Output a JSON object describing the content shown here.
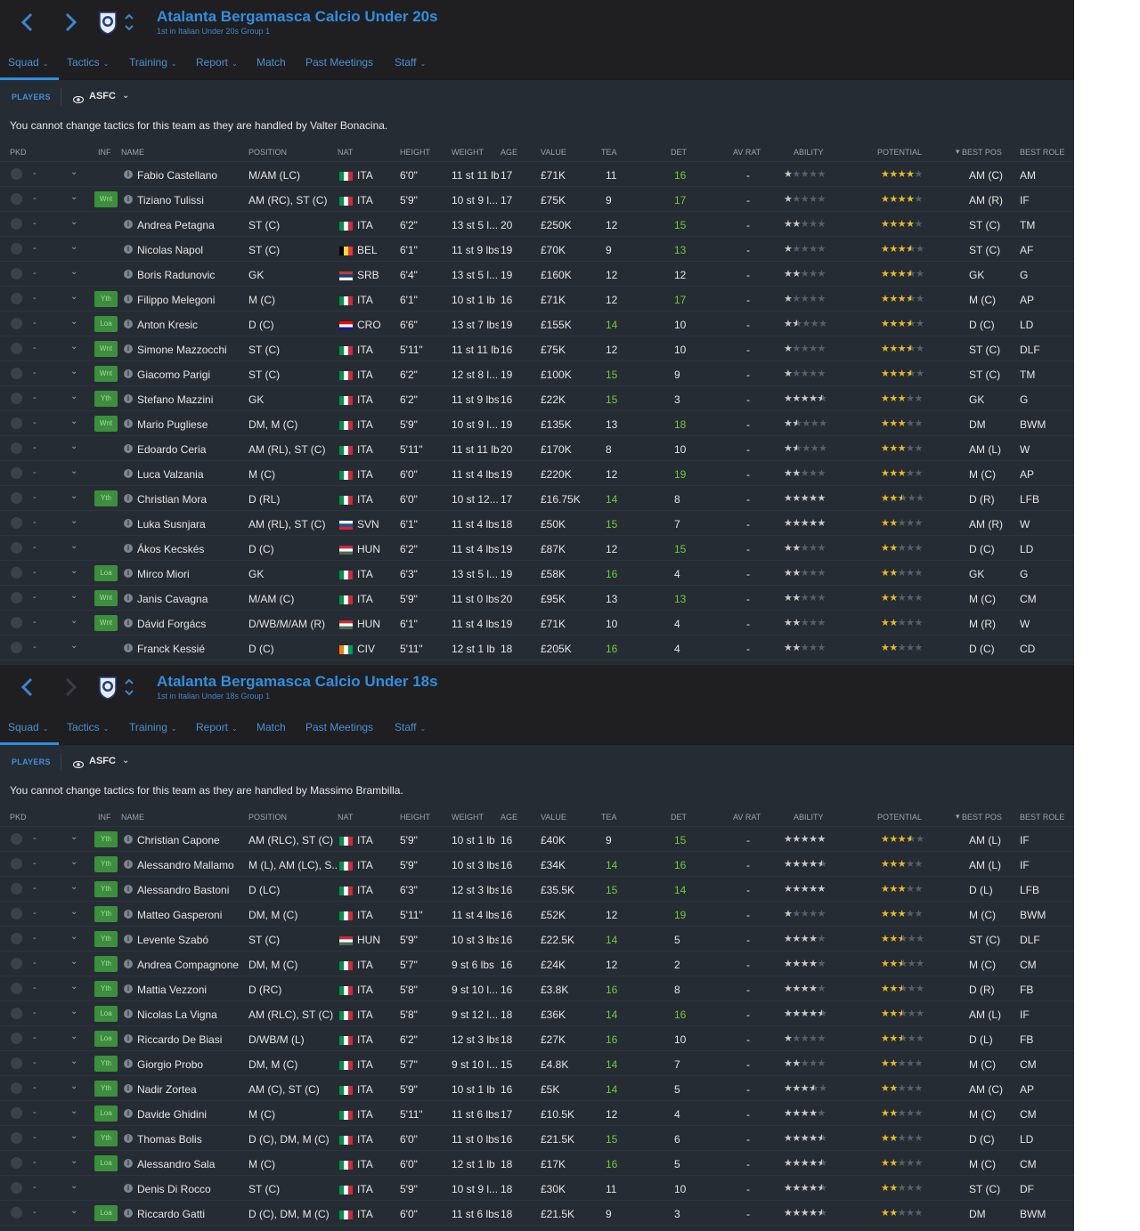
{
  "panels": [
    {
      "title": "Atalanta Bergamasca Calcio Under 20s",
      "subtitle": "1st in Italian Under 20s Group 1",
      "fwd_enabled": true,
      "notice": "You cannot change tactics for this team as they are handled by Valter Bonacina.",
      "rows": [
        {
          "inf": "",
          "name": "Fabio Castellano",
          "pos": "M/AM (LC)",
          "flag": "ITA",
          "nat": "ITA",
          "height": "6'0\"",
          "weight": "11 st 11 lbs",
          "age": "17",
          "value": "£71K",
          "tea": "11",
          "det": "16",
          "avrat": "-",
          "abl": 1,
          "pot": 4,
          "best_pos": "AM (C)",
          "best_role": "AM"
        },
        {
          "inf": "Wnt",
          "name": "Tiziano Tulissi",
          "pos": "AM (RC), ST (C)",
          "flag": "ITA",
          "nat": "ITA",
          "height": "5'9\"",
          "weight": "10 st 9 l...",
          "age": "17",
          "value": "£75K",
          "tea": "9",
          "det": "17",
          "avrat": "-",
          "abl": 1,
          "pot": 4,
          "best_pos": "AM (R)",
          "best_role": "IF"
        },
        {
          "inf": "",
          "name": "Andrea Petagna",
          "pos": "ST (C)",
          "flag": "ITA",
          "nat": "ITA",
          "height": "6'2\"",
          "weight": "13 st 5 l...",
          "age": "20",
          "value": "£250K",
          "tea": "12",
          "det": "15",
          "avrat": "-",
          "abl": 2,
          "pot": 4,
          "best_pos": "ST (C)",
          "best_role": "TM"
        },
        {
          "inf": "",
          "name": "Nicolas Napol",
          "pos": "ST (C)",
          "flag": "BEL",
          "nat": "BEL",
          "height": "6'1\"",
          "weight": "11 st 9 lbs",
          "age": "19",
          "value": "£70K",
          "tea": "9",
          "det": "13",
          "avrat": "-",
          "abl": 1,
          "pot": 3.5,
          "best_pos": "ST (C)",
          "best_role": "AF"
        },
        {
          "inf": "",
          "name": "Boris Radunovic",
          "pos": "GK",
          "flag": "SRB",
          "nat": "SRB",
          "height": "6'4\"",
          "weight": "13 st 5 l...",
          "age": "19",
          "value": "£160K",
          "tea": "12",
          "det": "12",
          "avrat": "-",
          "abl": 2,
          "pot": 3.5,
          "best_pos": "GK",
          "best_role": "G"
        },
        {
          "inf": "Yth",
          "name": "Filippo Melegoni",
          "pos": "M (C)",
          "flag": "ITA",
          "nat": "ITA",
          "height": "6'1\"",
          "weight": "10 st 1 lb",
          "age": "16",
          "value": "£71K",
          "tea": "12",
          "det": "17",
          "avrat": "-",
          "abl": 1,
          "pot": 3.5,
          "best_pos": "M (C)",
          "best_role": "AP"
        },
        {
          "inf": "Loa",
          "name": "Anton Kresic",
          "pos": "D (C)",
          "flag": "CRO",
          "nat": "CRO",
          "height": "6'6\"",
          "weight": "13 st 7 lbs",
          "age": "19",
          "value": "£155K",
          "tea": "14",
          "det": "10",
          "avrat": "-",
          "abl": 1.5,
          "pot": 3.5,
          "best_pos": "D (C)",
          "best_role": "LD"
        },
        {
          "inf": "Wnt",
          "name": "Simone Mazzocchi",
          "pos": "ST (C)",
          "flag": "ITA",
          "nat": "ITA",
          "height": "5'11\"",
          "weight": "11 st 11 lbs",
          "age": "16",
          "value": "£75K",
          "tea": "12",
          "det": "10",
          "avrat": "-",
          "abl": 1,
          "pot": 3.5,
          "best_pos": "ST (C)",
          "best_role": "DLF"
        },
        {
          "inf": "Wnt",
          "name": "Giacomo Parigi",
          "pos": "ST (C)",
          "flag": "ITA",
          "nat": "ITA",
          "height": "6'2\"",
          "weight": "12 st 8 l...",
          "age": "19",
          "value": "£100K",
          "tea": "15",
          "det": "9",
          "avrat": "-",
          "abl": 1,
          "pot": 3.5,
          "best_pos": "ST (C)",
          "best_role": "TM"
        },
        {
          "inf": "Yth",
          "name": "Stefano Mazzini",
          "pos": "GK",
          "flag": "ITA",
          "nat": "ITA",
          "height": "6'2\"",
          "weight": "11 st 9 lbs",
          "age": "16",
          "value": "£22K",
          "tea": "15",
          "det": "3",
          "avrat": "-",
          "abl": 4.5,
          "pot": 3,
          "best_pos": "GK",
          "best_role": "G"
        },
        {
          "inf": "Wnt",
          "name": "Mario Pugliese",
          "pos": "DM, M (C)",
          "flag": "ITA",
          "nat": "ITA",
          "height": "5'9\"",
          "weight": "10 st 9 l...",
          "age": "19",
          "value": "£135K",
          "tea": "13",
          "det": "18",
          "avrat": "-",
          "abl": 1.5,
          "pot": 3,
          "best_pos": "DM",
          "best_role": "BWM"
        },
        {
          "inf": "",
          "name": "Edoardo Ceria",
          "pos": "AM (RL), ST (C)",
          "flag": "ITA",
          "nat": "ITA",
          "height": "5'11\"",
          "weight": "11 st 11 lbs",
          "age": "20",
          "value": "£170K",
          "tea": "8",
          "det": "10",
          "avrat": "-",
          "abl": 1.5,
          "pot": 3,
          "best_pos": "AM (L)",
          "best_role": "W"
        },
        {
          "inf": "",
          "name": "Luca Valzania",
          "pos": "M (C)",
          "flag": "ITA",
          "nat": "ITA",
          "height": "6'0\"",
          "weight": "11 st 4 lbs",
          "age": "19",
          "value": "£220K",
          "tea": "12",
          "det": "19",
          "avrat": "-",
          "abl": 2,
          "pot": 3,
          "best_pos": "M (C)",
          "best_role": "AP"
        },
        {
          "inf": "Yth",
          "name": "Christian Mora",
          "pos": "D (RL)",
          "flag": "ITA",
          "nat": "ITA",
          "height": "6'0\"",
          "weight": "10 st 12...",
          "age": "17",
          "value": "£16.75K",
          "tea": "14",
          "det": "8",
          "avrat": "-",
          "abl": 5,
          "pot": 2.5,
          "best_pos": "D (R)",
          "best_role": "LFB"
        },
        {
          "inf": "",
          "name": "Luka Susnjara",
          "pos": "AM (RL), ST (C)",
          "flag": "SVN",
          "nat": "SVN",
          "height": "6'1\"",
          "weight": "11 st 4 lbs",
          "age": "18",
          "value": "£50K",
          "tea": "15",
          "det": "7",
          "avrat": "-",
          "abl": 5,
          "pot": 2,
          "best_pos": "AM (R)",
          "best_role": "W"
        },
        {
          "inf": "",
          "name": "Ákos Kecskés",
          "pos": "D (C)",
          "flag": "HUN",
          "nat": "HUN",
          "height": "6'2\"",
          "weight": "11 st 4 lbs",
          "age": "19",
          "value": "£87K",
          "tea": "12",
          "det": "15",
          "avrat": "-",
          "abl": 2,
          "pot": 2,
          "best_pos": "D (C)",
          "best_role": "LD"
        },
        {
          "inf": "Loa",
          "name": "Mirco Miori",
          "pos": "GK",
          "flag": "ITA",
          "nat": "ITA",
          "height": "6'3\"",
          "weight": "13 st 5 l...",
          "age": "19",
          "value": "£58K",
          "tea": "16",
          "det": "4",
          "avrat": "-",
          "abl": 2,
          "pot": 2,
          "best_pos": "GK",
          "best_role": "G"
        },
        {
          "inf": "Wnt",
          "name": "Janis Cavagna",
          "pos": "M/AM (C)",
          "flag": "ITA",
          "nat": "ITA",
          "height": "5'9\"",
          "weight": "11 st 0 lbs",
          "age": "20",
          "value": "£95K",
          "tea": "13",
          "det": "13",
          "avrat": "-",
          "abl": 2,
          "pot": 2,
          "best_pos": "M (C)",
          "best_role": "CM"
        },
        {
          "inf": "Wnt",
          "name": "Dávid Forgács",
          "pos": "D/WB/M/AM (R)",
          "flag": "HUN",
          "nat": "HUN",
          "height": "6'1\"",
          "weight": "11 st 4 lbs",
          "age": "19",
          "value": "£71K",
          "tea": "10",
          "det": "4",
          "avrat": "-",
          "abl": 2,
          "pot": 2,
          "best_pos": "M (R)",
          "best_role": "W"
        },
        {
          "inf": "",
          "name": "Franck Kessié",
          "pos": "D (C)",
          "flag": "CIV",
          "nat": "CIV",
          "height": "5'11\"",
          "weight": "12 st 1 lb",
          "age": "18",
          "value": "£205K",
          "tea": "16",
          "det": "4",
          "avrat": "-",
          "abl": 2,
          "pot": 2,
          "best_pos": "D (C)",
          "best_role": "CD"
        }
      ]
    },
    {
      "title": "Atalanta Bergamasca Calcio Under 18s",
      "subtitle": "1st in Italian Under 18s Group 1",
      "fwd_enabled": false,
      "notice": "You cannot change tactics for this team as they are handled by Massimo Brambilla.",
      "rows": [
        {
          "inf": "Yth",
          "name": "Christian Capone",
          "pos": "AM (RLC), ST (C)",
          "flag": "ITA",
          "nat": "ITA",
          "height": "5'9\"",
          "weight": "10 st 1 lb",
          "age": "16",
          "value": "£40K",
          "tea": "9",
          "det": "15",
          "avrat": "-",
          "abl": 5,
          "pot": 3.5,
          "best_pos": "AM (L)",
          "best_role": "IF"
        },
        {
          "inf": "Yth",
          "name": "Alessandro Mallamo",
          "pos": "M (L), AM (LC), S...",
          "flag": "ITA",
          "nat": "ITA",
          "height": "5'9\"",
          "weight": "10 st 3 lbs",
          "age": "16",
          "value": "£34K",
          "tea": "14",
          "det": "16",
          "avrat": "-",
          "abl": 4.5,
          "pot": 3,
          "best_pos": "AM (L)",
          "best_role": "IF"
        },
        {
          "inf": "Yth",
          "name": "Alessandro Bastoni",
          "pos": "D (LC)",
          "flag": "ITA",
          "nat": "ITA",
          "height": "6'3\"",
          "weight": "12 st 3 lbs",
          "age": "16",
          "value": "£35.5K",
          "tea": "15",
          "det": "14",
          "avrat": "-",
          "abl": 5,
          "pot": 3,
          "best_pos": "D (L)",
          "best_role": "LFB"
        },
        {
          "inf": "Yth",
          "name": "Matteo Gasperoni",
          "pos": "DM, M (C)",
          "flag": "ITA",
          "nat": "ITA",
          "height": "5'11\"",
          "weight": "11 st 4 lbs",
          "age": "16",
          "value": "£52K",
          "tea": "12",
          "det": "19",
          "avrat": "-",
          "abl": 1,
          "pot": 3,
          "best_pos": "M (C)",
          "best_role": "BWM"
        },
        {
          "inf": "Yth",
          "name": "Levente Szabó",
          "pos": "ST (C)",
          "flag": "HUN",
          "nat": "HUN",
          "height": "5'9\"",
          "weight": "10 st 3 lbs",
          "age": "16",
          "value": "£22.5K",
          "tea": "14",
          "det": "5",
          "avrat": "-",
          "abl": 4,
          "pot": 2.5,
          "best_pos": "ST (C)",
          "best_role": "DLF"
        },
        {
          "inf": "Yth",
          "name": "Andrea Compagnone",
          "pos": "DM, M (C)",
          "flag": "ITA",
          "nat": "ITA",
          "height": "5'7\"",
          "weight": "9 st 6 lbs",
          "age": "16",
          "value": "£24K",
          "tea": "12",
          "det": "2",
          "avrat": "-",
          "abl": 4,
          "pot": 2.5,
          "best_pos": "M (C)",
          "best_role": "CM"
        },
        {
          "inf": "Yth",
          "name": "Mattia Vezzoni",
          "pos": "D (RC)",
          "flag": "ITA",
          "nat": "ITA",
          "height": "5'8\"",
          "weight": "9 st 10 l...",
          "age": "16",
          "value": "£3.8K",
          "tea": "16",
          "det": "8",
          "avrat": "-",
          "abl": 4,
          "pot": 2.5,
          "best_pos": "D (R)",
          "best_role": "FB"
        },
        {
          "inf": "Loa",
          "name": "Nicolas La Vigna",
          "pos": "AM (RLC), ST (C)",
          "flag": "ITA",
          "nat": "ITA",
          "height": "5'8\"",
          "weight": "9 st 12 l...",
          "age": "18",
          "value": "£36K",
          "tea": "14",
          "det": "16",
          "avrat": "-",
          "abl": 4.5,
          "pot": 2.5,
          "best_pos": "AM (L)",
          "best_role": "IF"
        },
        {
          "inf": "Loa",
          "name": "Riccardo De Biasi",
          "pos": "D/WB/M (L)",
          "flag": "ITA",
          "nat": "ITA",
          "height": "6'2\"",
          "weight": "12 st 3 lbs",
          "age": "18",
          "value": "£27K",
          "tea": "16",
          "det": "10",
          "avrat": "-",
          "abl": 1,
          "pot": 2.5,
          "best_pos": "D (L)",
          "best_role": "FB"
        },
        {
          "inf": "Yth",
          "name": "Giorgio Probo",
          "pos": "DM, M (C)",
          "flag": "ITA",
          "nat": "ITA",
          "height": "5'7\"",
          "weight": "9 st 10 l...",
          "age": "15",
          "value": "£4.8K",
          "tea": "14",
          "det": "7",
          "avrat": "-",
          "abl": 2,
          "pot": 2,
          "best_pos": "M (C)",
          "best_role": "CM"
        },
        {
          "inf": "Yth",
          "name": "Nadir Zortea",
          "pos": "AM (C), ST (C)",
          "flag": "ITA",
          "nat": "ITA",
          "height": "5'9\"",
          "weight": "10 st 1 lb",
          "age": "16",
          "value": "£5K",
          "tea": "14",
          "det": "5",
          "avrat": "-",
          "abl": 3.5,
          "pot": 2,
          "best_pos": "AM (C)",
          "best_role": "AP"
        },
        {
          "inf": "Loa",
          "name": "Davide Ghidini",
          "pos": "M (C)",
          "flag": "ITA",
          "nat": "ITA",
          "height": "5'11\"",
          "weight": "11 st 6 lbs",
          "age": "17",
          "value": "£10.5K",
          "tea": "12",
          "det": "4",
          "avrat": "-",
          "abl": 4,
          "pot": 2,
          "best_pos": "M (C)",
          "best_role": "CM"
        },
        {
          "inf": "Yth",
          "name": "Thomas Bolis",
          "pos": "D (C), DM, M (C)",
          "flag": "ITA",
          "nat": "ITA",
          "height": "6'0\"",
          "weight": "11 st 0 lbs",
          "age": "16",
          "value": "£21.5K",
          "tea": "15",
          "det": "6",
          "avrat": "-",
          "abl": 4.5,
          "pot": 2,
          "best_pos": "D (C)",
          "best_role": "LD"
        },
        {
          "inf": "Loa",
          "name": "Alessandro Sala",
          "pos": "M (C)",
          "flag": "ITA",
          "nat": "ITA",
          "height": "6'0\"",
          "weight": "12 st 1 lb",
          "age": "18",
          "value": "£17K",
          "tea": "16",
          "det": "5",
          "avrat": "-",
          "abl": 4.5,
          "pot": 2,
          "best_pos": "M (C)",
          "best_role": "CM"
        },
        {
          "inf": "",
          "name": "Denis Di Rocco",
          "pos": "ST (C)",
          "flag": "ITA",
          "nat": "ITA",
          "height": "5'9\"",
          "weight": "10 st 9 l...",
          "age": "18",
          "value": "£30K",
          "tea": "11",
          "det": "10",
          "avrat": "-",
          "abl": 4.5,
          "pot": 2,
          "best_pos": "ST (C)",
          "best_role": "DF"
        },
        {
          "inf": "Loa",
          "name": "Riccardo Gatti",
          "pos": "D (C), DM, M (C)",
          "flag": "ITA",
          "nat": "ITA",
          "height": "6'0\"",
          "weight": "11 st 6 lbs",
          "age": "18",
          "value": "£21.5K",
          "tea": "9",
          "det": "3",
          "avrat": "-",
          "abl": 4.5,
          "pot": 2,
          "best_pos": "DM",
          "best_role": "BWM"
        }
      ]
    }
  ],
  "menu": [
    "Squad",
    "Tactics",
    "Training",
    "Report",
    "Match",
    "Past Meetings",
    "Staff"
  ],
  "subbar": {
    "players": "PLAYERS",
    "view": "ASFC"
  },
  "columns": {
    "pkd": "PKD",
    "inf": "INF",
    "name": "NAME",
    "position": "POSITION",
    "nat": "NAT",
    "height": "HEIGHT",
    "weight": "WEIGHT",
    "age": "AGE",
    "value": "VALUE",
    "tea": "TEA",
    "det": "DET",
    "avrat": "AV RAT",
    "ability": "ABILITY",
    "potential": "POTENTIAL",
    "best_pos": "BEST POS",
    "best_role": "BEST ROLE"
  },
  "colors": {
    "accent": "#2f8fe0",
    "good": "#6dcc3c",
    "star": "#e8b925",
    "inf_green": "#3c8f3c"
  }
}
